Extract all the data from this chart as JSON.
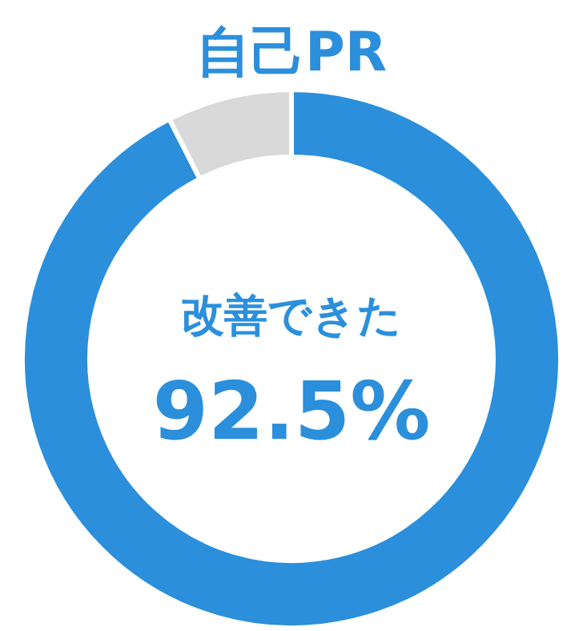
{
  "chart_data": {
    "type": "donut",
    "title": "自己PR",
    "categories": [
      "改善できた",
      null
    ],
    "values": [
      92.5,
      7.5
    ],
    "colors": [
      "#2b8fdb",
      "#d9d9d9"
    ],
    "value_labels": [
      "92.5%",
      null
    ]
  }
}
